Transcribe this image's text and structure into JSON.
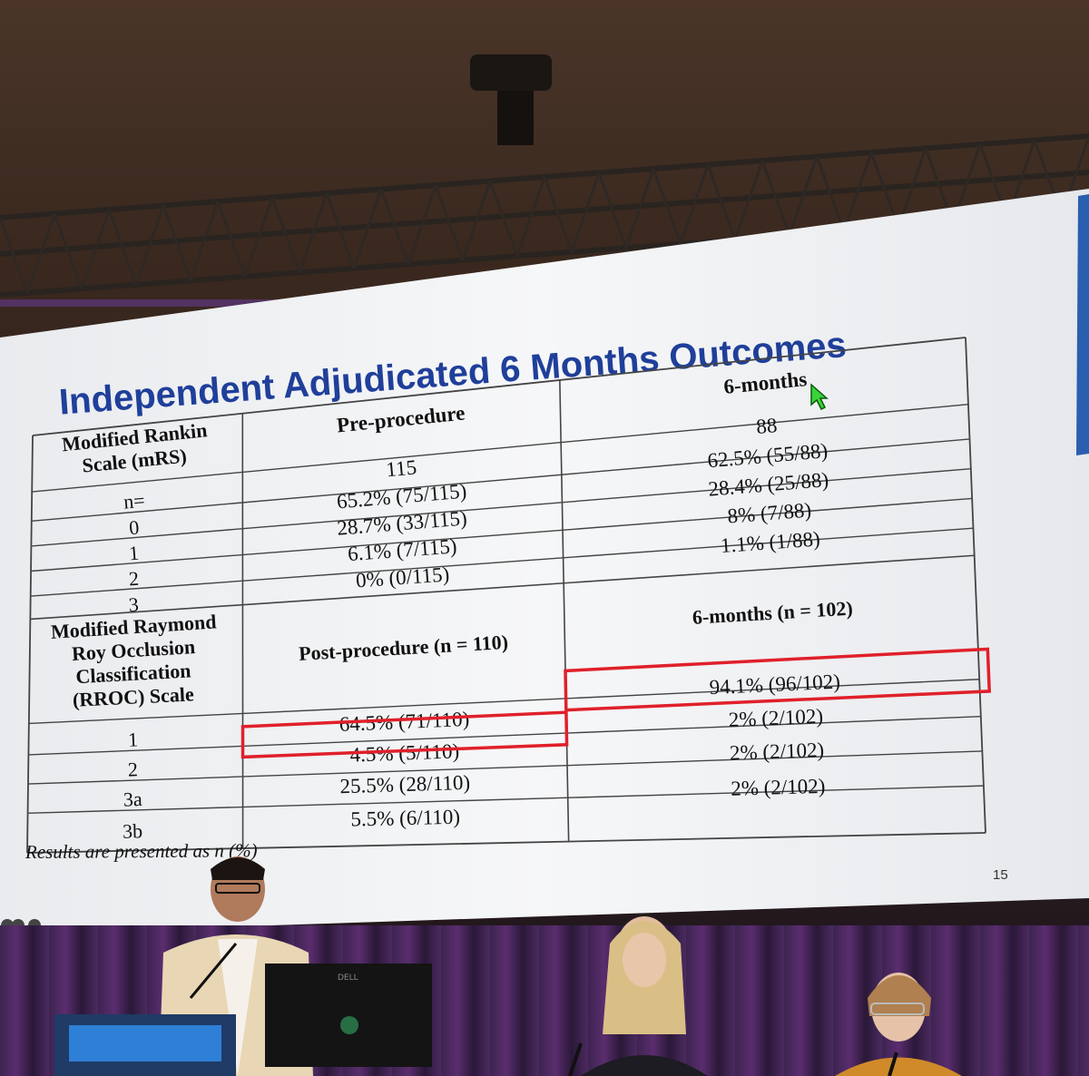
{
  "slide": {
    "title": "Independent Adjudicated 6 Months Outcomes",
    "page_number": "15",
    "footnote": "Results are presented as n (%)",
    "mrs": {
      "row_header": [
        "Modified Rankin",
        "Scale (mRS)"
      ],
      "col_pre": "Pre-procedure",
      "col_6m": "6-months",
      "rows": [
        {
          "label": "n=",
          "pre": "115",
          "six": "88"
        },
        {
          "label": "0",
          "pre": "65.2% (75/115)",
          "six": "62.5% (55/88)"
        },
        {
          "label": "1",
          "pre": "28.7% (33/115)",
          "six": "28.4% (25/88)"
        },
        {
          "label": "2",
          "pre": "6.1% (7/115)",
          "six": "8% (7/88)"
        },
        {
          "label": "3",
          "pre": "0% (0/115)",
          "six": "1.1% (1/88)"
        }
      ]
    },
    "rroc": {
      "row_header": [
        "Modified Raymond",
        "Roy Occlusion",
        "Classification",
        "(RROC) Scale"
      ],
      "col_post": "Post-procedure (n = 110)",
      "col_6m": "6-months (n = 102)",
      "rows": [
        {
          "label": "1",
          "post": "64.5% (71/110)",
          "six": "94.1% (96/102)"
        },
        {
          "label": "2",
          "post": "4.5% (5/110)",
          "six": "2% (2/102)"
        },
        {
          "label": "3a",
          "post": "25.5% (28/110)",
          "six": "2% (2/102)"
        },
        {
          "label": "3b",
          "post": "5.5% (6/110)",
          "six": "2% (2/102)"
        }
      ]
    },
    "colors": {
      "title": "#1f3f9a",
      "highlight": "#e0202a",
      "slide_bg": "#f3f4f6"
    }
  },
  "monitor_brand": "DELL"
}
